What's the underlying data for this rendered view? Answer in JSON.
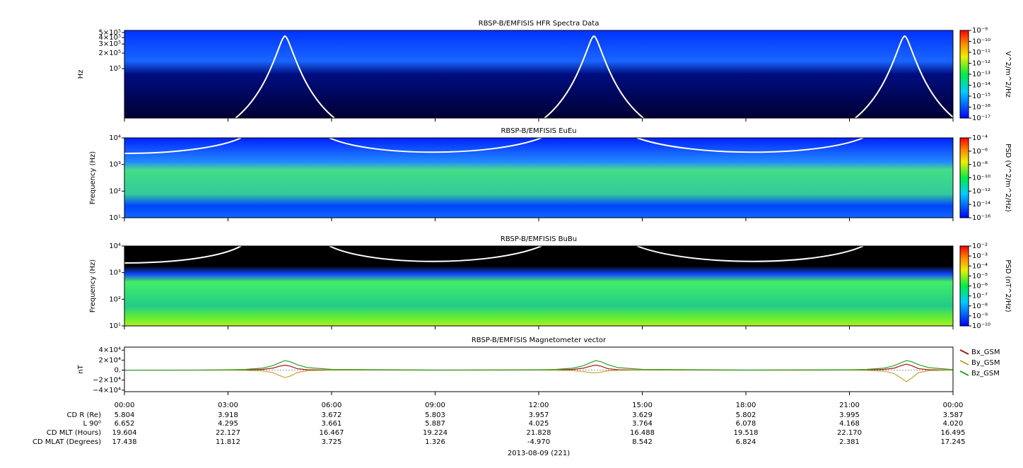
{
  "chart_data": [
    {
      "type": "spectrogram",
      "title": "RBSP-B/EMFISIS  HFR Spectra Data",
      "ylabel": "Hz",
      "log": true,
      "ylim": [
        11000,
        550000
      ],
      "yticks": [
        {
          "value": 500000,
          "label": "5×10⁵"
        },
        {
          "value": 400000,
          "label": "4×10⁵"
        },
        {
          "value": 300000,
          "label": "3×10⁵"
        },
        {
          "value": 200000,
          "label": "2×10⁵"
        },
        {
          "value": 100000,
          "label": "10⁵"
        }
      ],
      "colorbar": {
        "label": "V^2/m^2/Hz",
        "lim": [
          1e-17,
          1e-09
        ],
        "ticks": [
          {
            "value": 1e-09,
            "label": "10⁻⁹"
          },
          {
            "value": 1e-10,
            "label": "10⁻¹⁰"
          },
          {
            "value": 1e-11,
            "label": "10⁻¹¹"
          },
          {
            "value": 1e-12,
            "label": "10⁻¹²"
          },
          {
            "value": 1e-13,
            "label": "10⁻¹³"
          },
          {
            "value": 1e-14,
            "label": "10⁻¹⁴"
          },
          {
            "value": 1e-15,
            "label": "10⁻¹⁵"
          },
          {
            "value": 1e-16,
            "label": "10⁻¹⁶"
          },
          {
            "value": 1e-17,
            "label": "10⁻¹⁷"
          }
        ]
      }
    },
    {
      "type": "spectrogram",
      "title": "RBSP-B/EMFISIS  EuEu",
      "ylabel": "Frequency (Hz)",
      "log": true,
      "ylim": [
        10,
        10000
      ],
      "yticks": [
        {
          "value": 10000,
          "label": "10⁴"
        },
        {
          "value": 1000,
          "label": "10³"
        },
        {
          "value": 100,
          "label": "10²"
        },
        {
          "value": 10,
          "label": "10¹"
        }
      ],
      "colorbar": {
        "label": "PSD (V^2/m^2/Hz)",
        "lim": [
          1e-16,
          0.0001
        ],
        "ticks": [
          {
            "value": 0.0001,
            "label": "10⁻⁴"
          },
          {
            "value": 1e-06,
            "label": "10⁻⁶"
          },
          {
            "value": 1e-08,
            "label": "10⁻⁸"
          },
          {
            "value": 1e-10,
            "label": "10⁻¹⁰"
          },
          {
            "value": 1e-12,
            "label": "10⁻¹²"
          },
          {
            "value": 1e-14,
            "label": "10⁻¹⁴"
          },
          {
            "value": 1e-16,
            "label": "10⁻¹⁶"
          }
        ]
      }
    },
    {
      "type": "spectrogram",
      "title": "RBSP-B/EMFISIS  BuBu",
      "ylabel": "Frequency (Hz)",
      "log": true,
      "ylim": [
        10,
        10000
      ],
      "yticks": [
        {
          "value": 10000,
          "label": "10⁴"
        },
        {
          "value": 1000,
          "label": "10³"
        },
        {
          "value": 100,
          "label": "10²"
        },
        {
          "value": 10,
          "label": "10¹"
        }
      ],
      "colorbar": {
        "label": "PSD (nT^2/Hz)",
        "lim": [
          1e-10,
          0.01
        ],
        "ticks": [
          {
            "value": 0.01,
            "label": "10⁻²"
          },
          {
            "value": 0.001,
            "label": "10⁻³"
          },
          {
            "value": 0.0001,
            "label": "10⁻⁴"
          },
          {
            "value": 1e-05,
            "label": "10⁻⁵"
          },
          {
            "value": 1e-06,
            "label": "10⁻⁶"
          },
          {
            "value": 1e-07,
            "label": "10⁻⁷"
          },
          {
            "value": 1e-08,
            "label": "10⁻⁸"
          },
          {
            "value": 1e-09,
            "label": "10⁻⁹"
          },
          {
            "value": 1e-10,
            "label": "10⁻¹⁰"
          }
        ]
      }
    },
    {
      "type": "line",
      "title": "RBSP-B/EMFISIS  Magnetometer vector",
      "ylabel": "nT",
      "ylim": [
        -43000,
        46000
      ],
      "yticks": [
        {
          "value": 40000,
          "label": "4×10⁴"
        },
        {
          "value": 20000,
          "label": "2×10⁴"
        },
        {
          "value": 0,
          "label": "0."
        },
        {
          "value": -20000,
          "label": "−2×10⁴"
        },
        {
          "value": -40000,
          "label": "−4×10⁴"
        }
      ],
      "xlim": [
        0,
        24
      ],
      "xticks": [
        {
          "value": 0,
          "label": "00:00"
        },
        {
          "value": 3,
          "label": "03:00"
        },
        {
          "value": 6,
          "label": "06:00"
        },
        {
          "value": 9,
          "label": "09:00"
        },
        {
          "value": 12,
          "label": "12:00"
        },
        {
          "value": 15,
          "label": "15:00"
        },
        {
          "value": 18,
          "label": "18:00"
        },
        {
          "value": 21,
          "label": "21:00"
        },
        {
          "value": 24,
          "label": "00:00"
        }
      ],
      "x": [
        0,
        2,
        3,
        3.5,
        4,
        4.3,
        4.5,
        4.65,
        4.8,
        5,
        5.3,
        6,
        9,
        12,
        12.5,
        13,
        13.3,
        13.5,
        13.65,
        13.8,
        14,
        14.3,
        15,
        18,
        21,
        21.5,
        22,
        22.3,
        22.5,
        22.65,
        22.8,
        23,
        23.3,
        24
      ],
      "series": [
        {
          "name": "Bx_GSM",
          "color": "#a01818",
          "values": [
            0,
            0,
            200,
            500,
            1500,
            4000,
            8000,
            10000,
            8000,
            3000,
            800,
            200,
            0,
            200,
            500,
            1500,
            4000,
            8000,
            10000,
            8000,
            3000,
            800,
            200,
            0,
            200,
            500,
            1500,
            4000,
            9000,
            12000,
            9000,
            3000,
            800,
            0
          ]
        },
        {
          "name": "By_GSM",
          "color": "#c0a830",
          "values": [
            0,
            0,
            -200,
            -500,
            -1500,
            -5000,
            -11000,
            -15000,
            -12000,
            -5000,
            -1000,
            -200,
            0,
            -100,
            -300,
            -1000,
            -3000,
            -5000,
            -5500,
            -4000,
            -1500,
            -400,
            -100,
            0,
            -200,
            -500,
            -2000,
            -7000,
            -16000,
            -23000,
            -16000,
            -5000,
            -1000,
            0
          ]
        },
        {
          "name": "Bz_GSM",
          "color": "#2ca02c",
          "values": [
            0,
            200,
            800,
            1500,
            4000,
            9000,
            15000,
            19000,
            17000,
            11000,
            5000,
            1500,
            300,
            800,
            1500,
            4000,
            9000,
            15000,
            19000,
            17000,
            11000,
            5000,
            1500,
            300,
            800,
            1500,
            4000,
            9000,
            15000,
            19000,
            17000,
            11000,
            5000,
            1000
          ]
        }
      ]
    }
  ],
  "ephemeris": {
    "labels": [
      "CD R (Re)",
      "L 90⁰",
      "CD MLT (Hours)",
      "CD MLAT (Degrees)"
    ],
    "rows": [
      [
        "5.804",
        "3.918",
        "3.672",
        "5.803",
        "3.957",
        "3.629",
        "5.802",
        "3.995",
        "3.587"
      ],
      [
        "6.652",
        "4.295",
        "3.661",
        "5.887",
        "4.025",
        "3.764",
        "6.078",
        "4.168",
        "4.020"
      ],
      [
        "19.604",
        "22.127",
        "16.467",
        "19.224",
        "21.828",
        "16.488",
        "19.518",
        "22.170",
        "16.495"
      ],
      [
        "17.438",
        "11.812",
        "3.725",
        "1.326",
        "-4.970",
        "8.542",
        "6.824",
        "2.381",
        "17.245"
      ]
    ]
  },
  "date": "2013-08-09 (221)"
}
